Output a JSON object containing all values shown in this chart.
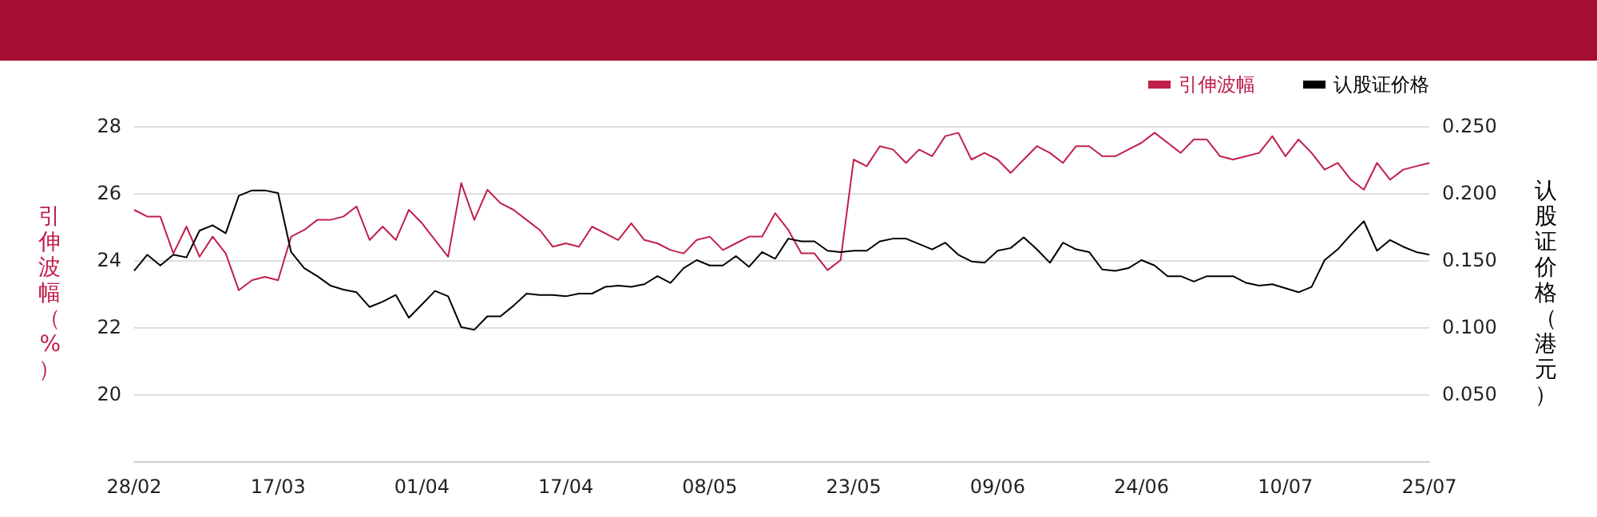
{
  "chart_data": {
    "type": "line",
    "categories": [
      "28/02",
      null,
      null,
      null,
      null,
      null,
      null,
      null,
      null,
      null,
      null,
      "17/03",
      null,
      null,
      null,
      null,
      null,
      null,
      null,
      null,
      null,
      null,
      "01/04",
      null,
      null,
      null,
      null,
      null,
      null,
      null,
      null,
      null,
      null,
      "17/04",
      null,
      null,
      null,
      null,
      null,
      null,
      null,
      null,
      null,
      null,
      "08/05",
      null,
      null,
      null,
      null,
      null,
      null,
      null,
      null,
      null,
      null,
      "23/05",
      null,
      null,
      null,
      null,
      null,
      null,
      null,
      null,
      null,
      null,
      "09/06",
      null,
      null,
      null,
      null,
      null,
      null,
      null,
      null,
      null,
      null,
      "24/06",
      null,
      null,
      null,
      null,
      null,
      null,
      null,
      null,
      null,
      null,
      "10/07",
      null,
      null,
      null,
      null,
      null,
      null,
      null,
      null,
      null,
      null,
      "25/07"
    ],
    "series": [
      {
        "name": "引伸波幅",
        "color": "#c0204a",
        "values": [
          25.5,
          25.3,
          25.3,
          24.2,
          25.0,
          24.1,
          24.7,
          24.2,
          23.1,
          23.4,
          23.5,
          23.4,
          24.7,
          24.9,
          25.2,
          25.2,
          25.3,
          25.6,
          24.6,
          25.0,
          24.6,
          25.5,
          25.1,
          24.6,
          24.1,
          26.3,
          25.2,
          26.1,
          25.7,
          25.5,
          25.2,
          24.9,
          24.4,
          24.5,
          24.4,
          25.0,
          24.8,
          24.6,
          25.1,
          24.6,
          24.5,
          24.3,
          24.2,
          24.6,
          24.7,
          24.3,
          24.5,
          24.7,
          24.7,
          25.4,
          24.9,
          24.2,
          24.2,
          23.7,
          24.0,
          27.0,
          26.8,
          27.4,
          27.3,
          26.9,
          27.3,
          27.1,
          27.7,
          27.8,
          27.0,
          27.2,
          27.0,
          26.6,
          27.0,
          27.4,
          27.2,
          26.9,
          27.4,
          27.4,
          27.1,
          27.1,
          27.3,
          27.5,
          27.8,
          27.5,
          27.2,
          27.6,
          27.6,
          27.1,
          27.0,
          27.1,
          27.2,
          27.7,
          27.1,
          27.6,
          27.2,
          26.7,
          26.9,
          26.4,
          26.1,
          26.9,
          26.4,
          26.7,
          26.8,
          26.9
        ]
      },
      {
        "name": "认股证价格",
        "color": "#000000",
        "axis": "y2",
        "values": [
          0.142,
          0.154,
          0.146,
          0.154,
          0.152,
          0.172,
          0.176,
          0.17,
          0.198,
          0.202,
          0.202,
          0.2,
          0.156,
          0.144,
          0.138,
          0.131,
          0.128,
          0.126,
          0.115,
          0.119,
          0.124,
          0.107,
          0.117,
          0.127,
          0.123,
          0.1,
          0.098,
          0.108,
          0.108,
          0.116,
          0.125,
          0.124,
          0.124,
          0.123,
          0.125,
          0.125,
          0.13,
          0.131,
          0.13,
          0.132,
          0.138,
          0.133,
          0.144,
          0.15,
          0.146,
          0.146,
          0.153,
          0.145,
          0.156,
          0.151,
          0.166,
          0.164,
          0.164,
          0.157,
          0.156,
          0.157,
          0.157,
          0.164,
          0.166,
          0.166,
          0.162,
          0.158,
          0.163,
          0.154,
          0.149,
          0.148,
          0.157,
          0.159,
          0.167,
          0.158,
          0.148,
          0.163,
          0.158,
          0.156,
          0.143,
          0.142,
          0.144,
          0.15,
          0.146,
          0.138,
          0.138,
          0.134,
          0.138,
          0.138,
          0.138,
          0.133,
          0.131,
          0.132,
          0.129,
          0.126,
          0.13,
          0.15,
          0.158,
          0.169,
          0.179,
          0.157,
          0.165,
          0.16,
          0.156,
          0.154
        ]
      }
    ],
    "ylabel": "引伸波幅（%）",
    "y2label": "认股证价格（港元）",
    "ylim": [
      18,
      28
    ],
    "yticks": [
      20,
      22,
      24,
      26,
      28
    ],
    "y2lim": [
      0,
      0.25
    ],
    "y2ticks": [
      {
        "value": 0.05,
        "label": "0.050"
      },
      {
        "value": 0.1,
        "label": "0.100"
      },
      {
        "value": 0.15,
        "label": "0.150"
      },
      {
        "value": 0.2,
        "label": "0.200"
      },
      {
        "value": 0.25,
        "label": "0.250"
      }
    ],
    "grid": "y",
    "legend": "top right",
    "marker": "none",
    "line_style": "solid"
  }
}
